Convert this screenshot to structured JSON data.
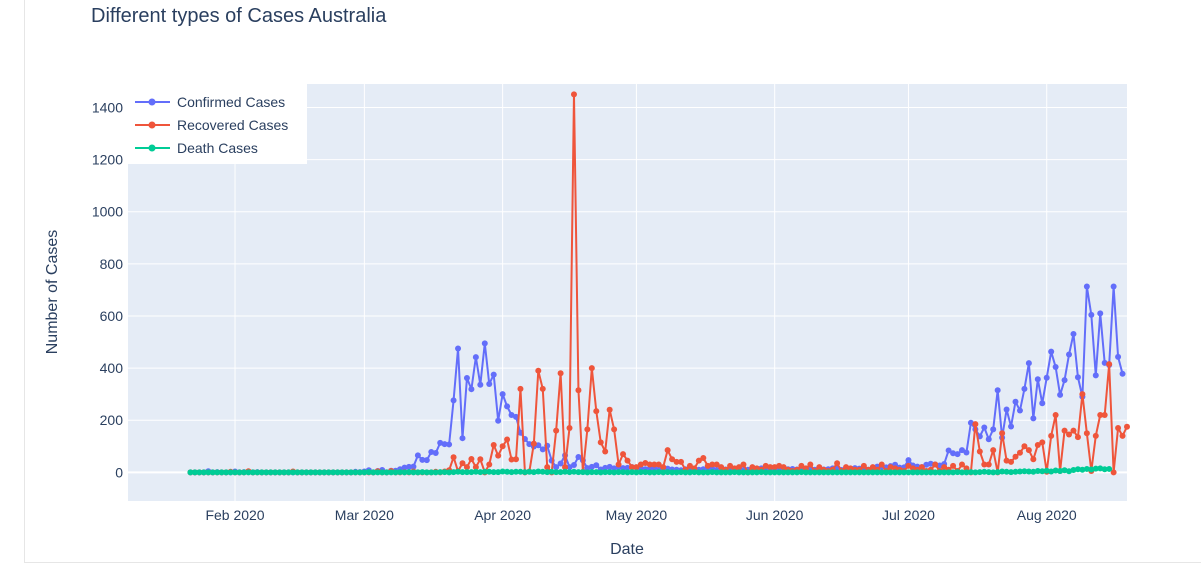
{
  "chart_data": {
    "type": "line",
    "title": "Different types of Cases Australia",
    "xlabel": "Date",
    "ylabel": "Number of Cases",
    "x_start": "2020-01-22",
    "xlim": [
      "2020-01-08",
      "2020-08-19"
    ],
    "ylim": [
      -110,
      1490
    ],
    "x_ticks": [
      {
        "date": "2020-02-01",
        "label": "Feb 2020"
      },
      {
        "date": "2020-03-01",
        "label": "Mar 2020"
      },
      {
        "date": "2020-04-01",
        "label": "Apr 2020"
      },
      {
        "date": "2020-05-01",
        "label": "May 2020"
      },
      {
        "date": "2020-06-01",
        "label": "Jun 2020"
      },
      {
        "date": "2020-07-01",
        "label": "Jul 2020"
      },
      {
        "date": "2020-08-01",
        "label": "Aug 2020"
      }
    ],
    "y_ticks": [
      0,
      200,
      400,
      600,
      800,
      1000,
      1200,
      1400
    ],
    "grid": true,
    "legend_position": "top-left",
    "series": [
      {
        "name": "Confirmed Cases",
        "color": "#636efa",
        "values": [
          0,
          0,
          0,
          0,
          4,
          0,
          1,
          0,
          0,
          0,
          3,
          0,
          1,
          2,
          0,
          1,
          0,
          0,
          0,
          0,
          0,
          0,
          0,
          0,
          0,
          0,
          0,
          0,
          0,
          0,
          0,
          0,
          0,
          0,
          0,
          0,
          0,
          2,
          1,
          3,
          8,
          0,
          5,
          9,
          0,
          6,
          6,
          12,
          18,
          21,
          22,
          65,
          48,
          47,
          78,
          74,
          113,
          108,
          107,
          276,
          475,
          131,
          362,
          319,
          442,
          336,
          495,
          339,
          375,
          198,
          300,
          253,
          220,
          213,
          152,
          128,
          108,
          99,
          104,
          88,
          102,
          45,
          20,
          34,
          65,
          20,
          28,
          59,
          46,
          16,
          21,
          27,
          11,
          17,
          21,
          15,
          20,
          16,
          17,
          20,
          18,
          15,
          12,
          14,
          16,
          10,
          9,
          14,
          11,
          10,
          8,
          12,
          9,
          11,
          10,
          12,
          10,
          14,
          9,
          8,
          11,
          10,
          12,
          13,
          9,
          10,
          11,
          12,
          15,
          13,
          11,
          9,
          10,
          14,
          12,
          13,
          11,
          10,
          9,
          12,
          10,
          13,
          11,
          12,
          15,
          14,
          9,
          11,
          12,
          16,
          14,
          18,
          10,
          13,
          22,
          20,
          19,
          24,
          29,
          18,
          19,
          47,
          26,
          22,
          20,
          29,
          33,
          30,
          26,
          32,
          84,
          73,
          70,
          85,
          76,
          190,
          165,
          138,
          172,
          127,
          165,
          315,
          133,
          241,
          176,
          271,
          237,
          320,
          419,
          207,
          357,
          265,
          363,
          463,
          404,
          297,
          354,
          452,
          531,
          365,
          290,
          713,
          604,
          372,
          610,
          420,
          412,
          713,
          443,
          378
        ]
      },
      {
        "name": "Recovered Cases",
        "color": "#ef553b",
        "values": [
          0,
          0,
          0,
          0,
          0,
          0,
          0,
          0,
          0,
          2,
          0,
          0,
          0,
          4,
          0,
          0,
          0,
          0,
          0,
          0,
          0,
          0,
          0,
          3,
          0,
          0,
          0,
          0,
          0,
          0,
          0,
          0,
          0,
          0,
          0,
          0,
          0,
          0,
          0,
          0,
          0,
          0,
          4,
          0,
          0,
          5,
          0,
          0,
          1,
          0,
          3,
          0,
          0,
          0,
          0,
          2,
          0,
          3,
          8,
          58,
          4,
          35,
          20,
          51,
          20,
          50,
          0,
          30,
          105,
          64,
          100,
          126,
          49,
          50,
          320,
          0,
          3,
          110,
          390,
          320,
          20,
          0,
          160,
          380,
          20,
          170,
          1450,
          315,
          2,
          165,
          400,
          235,
          115,
          80,
          240,
          165,
          30,
          70,
          45,
          20,
          20,
          30,
          36,
          30,
          30,
          30,
          20,
          85,
          50,
          40,
          40,
          10,
          25,
          15,
          45,
          55,
          25,
          30,
          30,
          20,
          10,
          25,
          15,
          20,
          30,
          0,
          20,
          15,
          10,
          25,
          20,
          20,
          25,
          20,
          10,
          5,
          10,
          25,
          15,
          30,
          5,
          20,
          10,
          5,
          10,
          35,
          5,
          20,
          15,
          10,
          10,
          25,
          10,
          20,
          10,
          30,
          5,
          20,
          15,
          10,
          5,
          25,
          15,
          10,
          20,
          5,
          10,
          30,
          5,
          20,
          10,
          25,
          5,
          30,
          15,
          0,
          185,
          80,
          30,
          30,
          85,
          0,
          150,
          45,
          40,
          60,
          75,
          100,
          85,
          50,
          105,
          115,
          2,
          140,
          220,
          5,
          160,
          145,
          160,
          135,
          300,
          150,
          5,
          140,
          220,
          220,
          415,
          0,
          170,
          140,
          175
        ]
      },
      {
        "name": "Death Cases",
        "color": "#00cc96",
        "values": [
          0,
          0,
          0,
          0,
          0,
          0,
          0,
          0,
          0,
          0,
          0,
          0,
          0,
          0,
          0,
          0,
          0,
          0,
          0,
          0,
          0,
          0,
          0,
          0,
          0,
          0,
          0,
          0,
          0,
          0,
          0,
          0,
          0,
          0,
          0,
          0,
          0,
          0,
          0,
          0,
          1,
          0,
          0,
          0,
          0,
          0,
          0,
          1,
          0,
          1,
          0,
          0,
          1,
          0,
          0,
          0,
          1,
          1,
          0,
          1,
          2,
          1,
          1,
          1,
          2,
          1,
          2,
          2,
          1,
          1,
          3,
          2,
          1,
          2,
          2,
          1,
          2,
          1,
          3,
          2,
          1,
          2,
          1,
          1,
          2,
          1,
          2,
          1,
          1,
          0,
          1,
          1,
          0,
          1,
          1,
          0,
          1,
          1,
          0,
          1,
          0,
          1,
          1,
          0,
          0,
          1,
          0,
          1,
          0,
          0,
          1,
          0,
          0,
          1,
          0,
          0,
          0,
          1,
          0,
          0,
          0,
          0,
          1,
          0,
          0,
          0,
          0,
          0,
          1,
          0,
          0,
          0,
          0,
          0,
          0,
          0,
          0,
          1,
          0,
          0,
          0,
          0,
          0,
          0,
          0,
          0,
          0,
          0,
          0,
          0,
          0,
          0,
          0,
          0,
          0,
          0,
          0,
          0,
          0,
          0,
          0,
          0,
          0,
          0,
          0,
          0,
          0,
          0,
          0,
          0,
          0,
          0,
          1,
          0,
          0,
          1,
          0,
          1,
          2,
          1,
          0,
          1,
          3,
          2,
          1,
          2,
          3,
          4,
          3,
          2,
          5,
          4,
          6,
          3,
          7,
          5,
          8,
          4,
          9,
          12,
          10,
          13,
          11,
          14,
          15,
          12,
          13
        ]
      }
    ]
  }
}
